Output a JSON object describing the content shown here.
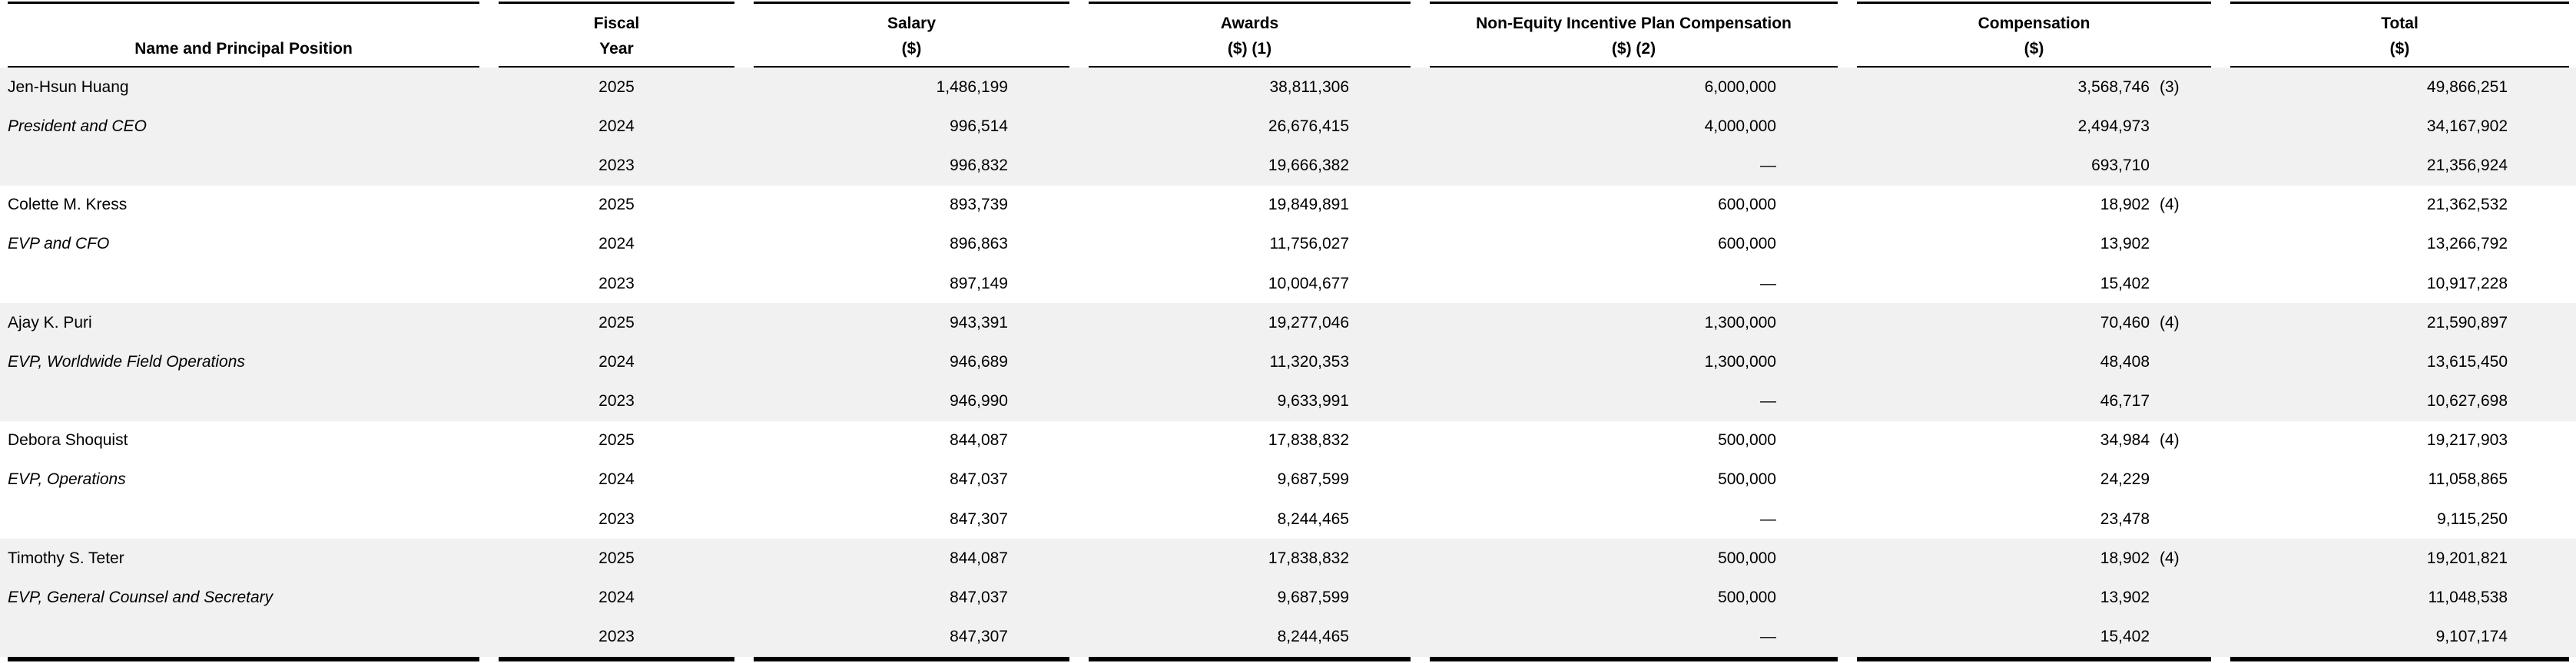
{
  "header": {
    "columns": [
      {
        "line1": "",
        "line2": "Name and Principal Position"
      },
      {
        "line1": "Fiscal",
        "line2": "Year"
      },
      {
        "line1": "Salary",
        "line2": "($)"
      },
      {
        "line1": "Awards",
        "line2": "($) (1)"
      },
      {
        "line1": "Non-Equity Incentive Plan Compensation",
        "line2": "($) (2)"
      },
      {
        "line1": "Compensation",
        "line2": "($)"
      },
      {
        "line1": "Total",
        "line2": "($)"
      }
    ]
  },
  "table": {
    "groups": [
      {
        "name": "Jen-Hsun Huang",
        "position": "President and CEO",
        "rows": [
          {
            "year": "2025",
            "salary": "1,486,199",
            "awards": "38,811,306",
            "non_equity": "6,000,000",
            "comp": "3,568,746",
            "comp_note": "(3)",
            "total": "49,866,251"
          },
          {
            "year": "2024",
            "salary": "996,514",
            "awards": "26,676,415",
            "non_equity": "4,000,000",
            "comp": "2,494,973",
            "comp_note": "",
            "total": "34,167,902"
          },
          {
            "year": "2023",
            "salary": "996,832",
            "awards": "19,666,382",
            "non_equity": "—",
            "comp": "693,710",
            "comp_note": "",
            "total": "21,356,924"
          }
        ]
      },
      {
        "name": "Colette M. Kress",
        "position": "EVP and CFO",
        "rows": [
          {
            "year": "2025",
            "salary": "893,739",
            "awards": "19,849,891",
            "non_equity": "600,000",
            "comp": "18,902",
            "comp_note": "(4)",
            "total": "21,362,532"
          },
          {
            "year": "2024",
            "salary": "896,863",
            "awards": "11,756,027",
            "non_equity": "600,000",
            "comp": "13,902",
            "comp_note": "",
            "total": "13,266,792"
          },
          {
            "year": "2023",
            "salary": "897,149",
            "awards": "10,004,677",
            "non_equity": "—",
            "comp": "15,402",
            "comp_note": "",
            "total": "10,917,228"
          }
        ]
      },
      {
        "name": "Ajay K. Puri",
        "position": "EVP, Worldwide Field Operations",
        "rows": [
          {
            "year": "2025",
            "salary": "943,391",
            "awards": "19,277,046",
            "non_equity": "1,300,000",
            "comp": "70,460",
            "comp_note": "(4)",
            "total": "21,590,897"
          },
          {
            "year": "2024",
            "salary": "946,689",
            "awards": "11,320,353",
            "non_equity": "1,300,000",
            "comp": "48,408",
            "comp_note": "",
            "total": "13,615,450"
          },
          {
            "year": "2023",
            "salary": "946,990",
            "awards": "9,633,991",
            "non_equity": "—",
            "comp": "46,717",
            "comp_note": "",
            "total": "10,627,698"
          }
        ]
      },
      {
        "name": "Debora Shoquist",
        "position": "EVP, Operations",
        "rows": [
          {
            "year": "2025",
            "salary": "844,087",
            "awards": "17,838,832",
            "non_equity": "500,000",
            "comp": "34,984",
            "comp_note": "(4)",
            "total": "19,217,903"
          },
          {
            "year": "2024",
            "salary": "847,037",
            "awards": "9,687,599",
            "non_equity": "500,000",
            "comp": "24,229",
            "comp_note": "",
            "total": "11,058,865"
          },
          {
            "year": "2023",
            "salary": "847,307",
            "awards": "8,244,465",
            "non_equity": "—",
            "comp": "23,478",
            "comp_note": "",
            "total": "9,115,250"
          }
        ]
      },
      {
        "name": "Timothy S. Teter",
        "position": "EVP, General Counsel and Secretary",
        "rows": [
          {
            "year": "2025",
            "salary": "844,087",
            "awards": "17,838,832",
            "non_equity": "500,000",
            "comp": "18,902",
            "comp_note": "(4)",
            "total": "19,201,821"
          },
          {
            "year": "2024",
            "salary": "847,037",
            "awards": "9,687,599",
            "non_equity": "500,000",
            "comp": "13,902",
            "comp_note": "",
            "total": "11,048,538"
          },
          {
            "year": "2023",
            "salary": "847,307",
            "awards": "8,244,465",
            "non_equity": "—",
            "comp": "15,402",
            "comp_note": "",
            "total": "9,107,174"
          }
        ]
      }
    ]
  },
  "colors": {
    "band_gray": "#f1f1f1",
    "rule_black": "#000000",
    "background": "#ffffff",
    "text": "#000000"
  }
}
